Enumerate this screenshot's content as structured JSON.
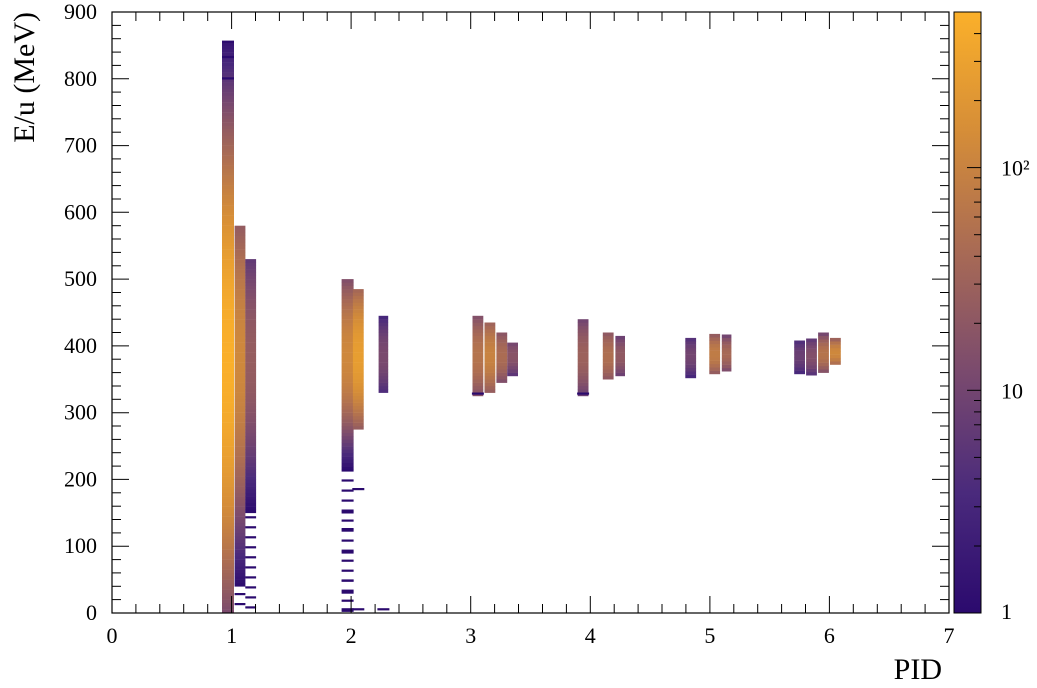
{
  "chart_data": {
    "type": "heatmap",
    "title": "",
    "xlabel": "PID",
    "ylabel": "E/u (MeV)",
    "xlim": [
      0,
      7
    ],
    "ylim": [
      0,
      900
    ],
    "x_ticks": [
      "0",
      "1",
      "2",
      "3",
      "4",
      "5",
      "6",
      "7"
    ],
    "y_ticks": [
      "0",
      "100",
      "200",
      "300",
      "400",
      "500",
      "600",
      "700",
      "800",
      "900"
    ],
    "colorbar": {
      "scale": "log",
      "range": [
        1,
        500
      ],
      "tick_labels": [
        {
          "value": 1,
          "text": "1"
        },
        {
          "value": 10,
          "text": "10"
        },
        {
          "value": 100,
          "text": "10²"
        }
      ],
      "colors": [
        "#2b0a6e",
        "#4a2a7c",
        "#7a4a6e",
        "#a86a55",
        "#d58d38",
        "#fbb02a"
      ]
    },
    "bands": [
      {
        "x": 0.97,
        "x_width": 0.1,
        "y_min": 0,
        "y_max": 855,
        "y_peak": 380,
        "peak_count": 480,
        "sigma": 140
      },
      {
        "x": 1.07,
        "x_width": 0.09,
        "y_min": 0,
        "y_max": 580,
        "y_peak": 380,
        "peak_count": 120,
        "sigma": 110
      },
      {
        "x": 1.16,
        "x_width": 0.09,
        "y_min": 0,
        "y_max": 528,
        "y_peak": 380,
        "peak_count": 25,
        "sigma": 90
      },
      {
        "x": 1.97,
        "x_width": 0.1,
        "y_min": 0,
        "y_max": 497,
        "y_peak": 385,
        "peak_count": 120,
        "sigma": 55
      },
      {
        "x": 2.06,
        "x_width": 0.09,
        "y_min": 275,
        "y_max": 485,
        "y_peak": 385,
        "peak_count": 260,
        "sigma": 50
      },
      {
        "x": 2.27,
        "x_width": 0.08,
        "y_min": 330,
        "y_max": 445,
        "y_peak": 385,
        "peak_count": 12,
        "sigma": 35
      },
      {
        "x": 3.06,
        "x_width": 0.09,
        "y_min": 325,
        "y_max": 445,
        "y_peak": 385,
        "peak_count": 60,
        "sigma": 35
      },
      {
        "x": 3.16,
        "x_width": 0.09,
        "y_min": 330,
        "y_max": 435,
        "y_peak": 385,
        "peak_count": 100,
        "sigma": 32
      },
      {
        "x": 3.26,
        "x_width": 0.09,
        "y_min": 345,
        "y_max": 420,
        "y_peak": 385,
        "peak_count": 45,
        "sigma": 25
      },
      {
        "x": 3.35,
        "x_width": 0.09,
        "y_min": 355,
        "y_max": 405,
        "y_peak": 385,
        "peak_count": 18,
        "sigma": 18
      },
      {
        "x": 3.94,
        "x_width": 0.09,
        "y_min": 325,
        "y_max": 440,
        "y_peak": 385,
        "peak_count": 30,
        "sigma": 35
      },
      {
        "x": 4.15,
        "x_width": 0.09,
        "y_min": 350,
        "y_max": 420,
        "y_peak": 385,
        "peak_count": 50,
        "sigma": 25
      },
      {
        "x": 4.25,
        "x_width": 0.08,
        "y_min": 355,
        "y_max": 412,
        "y_peak": 385,
        "peak_count": 22,
        "sigma": 20
      },
      {
        "x": 4.84,
        "x_width": 0.09,
        "y_min": 352,
        "y_max": 410,
        "y_peak": 385,
        "peak_count": 10,
        "sigma": 20
      },
      {
        "x": 5.04,
        "x_width": 0.09,
        "y_min": 358,
        "y_max": 417,
        "y_peak": 388,
        "peak_count": 80,
        "sigma": 18
      },
      {
        "x": 5.14,
        "x_width": 0.08,
        "y_min": 362,
        "y_max": 415,
        "y_peak": 388,
        "peak_count": 40,
        "sigma": 16
      },
      {
        "x": 5.75,
        "x_width": 0.09,
        "y_min": 358,
        "y_max": 405,
        "y_peak": 385,
        "peak_count": 8,
        "sigma": 18
      },
      {
        "x": 5.85,
        "x_width": 0.09,
        "y_min": 356,
        "y_max": 410,
        "y_peak": 385,
        "peak_count": 15,
        "sigma": 18
      },
      {
        "x": 5.95,
        "x_width": 0.09,
        "y_min": 360,
        "y_max": 420,
        "y_peak": 388,
        "peak_count": 60,
        "sigma": 16
      },
      {
        "x": 6.05,
        "x_width": 0.09,
        "y_min": 372,
        "y_max": 408,
        "y_peak": 390,
        "peak_count": 120,
        "sigma": 12
      }
    ],
    "stray_entries": [
      {
        "x": 1.97,
        "y": 5
      },
      {
        "x": 1.97,
        "y": 30
      },
      {
        "x": 1.97,
        "y": 48
      },
      {
        "x": 1.97,
        "y": 90
      },
      {
        "x": 1.97,
        "y": 125
      },
      {
        "x": 1.97,
        "y": 150
      },
      {
        "x": 2.06,
        "y": 5
      },
      {
        "x": 2.06,
        "y": 185
      },
      {
        "x": 2.27,
        "y": 5
      },
      {
        "x": 0.97,
        "y": 800
      },
      {
        "x": 0.97,
        "y": 832
      },
      {
        "x": 0.97,
        "y": 855
      },
      {
        "x": 3.94,
        "y": 328
      },
      {
        "x": 3.06,
        "y": 328
      }
    ],
    "grid": false,
    "legend": "colorbar-right"
  }
}
